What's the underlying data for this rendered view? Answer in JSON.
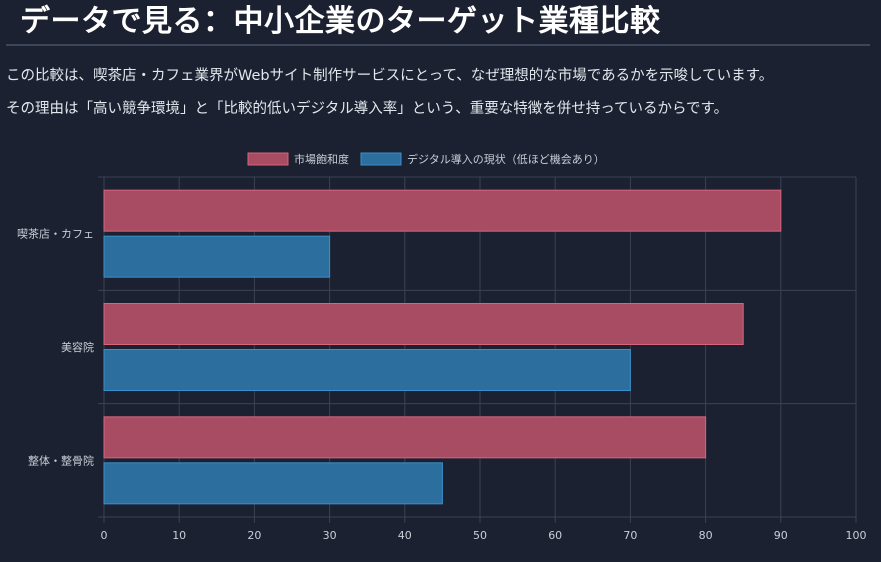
{
  "header": {
    "title": "データで見る：中小企業のターゲット業種比較"
  },
  "description": {
    "line1": "この比較は、喫茶店・カフェ業界がWebサイト制作サービスにとって、なぜ理想的な市場であるかを示唆しています。",
    "line2": "その理由は「高い競争環境」と「比較的低いデジタル導入率」という、重要な特徴を併せ持っているからです。"
  },
  "chart_data": {
    "type": "bar",
    "orientation": "horizontal",
    "categories": [
      "喫茶店・カフェ",
      "美容院",
      "整体・整骨院"
    ],
    "series": [
      {
        "name": "市場飽和度",
        "values": [
          90,
          85,
          80
        ],
        "color": "#a74c62",
        "border": "#d8647e"
      },
      {
        "name": "デジタル導入の現状（低ほど機会あり）",
        "values": [
          30,
          70,
          45
        ],
        "color": "#2c6e9e",
        "border": "#3a8fcc"
      }
    ],
    "xlim": [
      0,
      100
    ],
    "xticks": [
      0,
      10,
      20,
      30,
      40,
      50,
      60,
      70,
      80,
      90,
      100
    ],
    "grid": true,
    "legend": "top-center"
  }
}
